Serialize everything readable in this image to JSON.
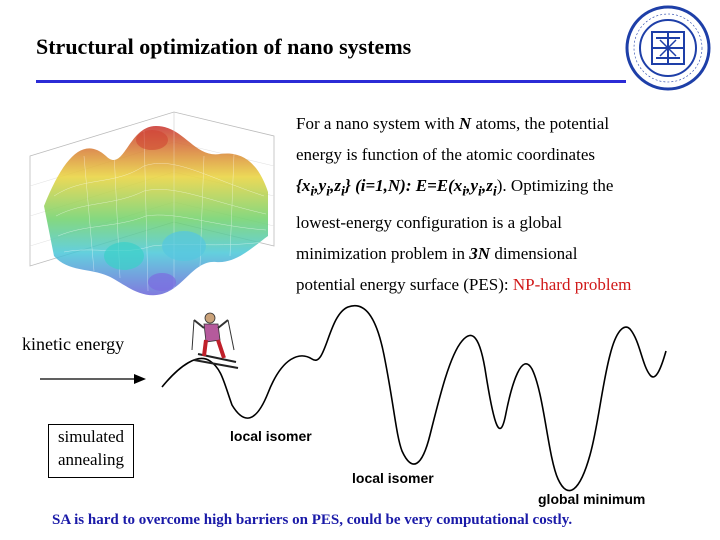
{
  "slide": {
    "title": "Structural optimization of nano systems",
    "paragraph": {
      "line1_a": "For a nano system with ",
      "line1_n": "N",
      "line1_b": " atoms, the potential",
      "line2": "energy is function of the atomic coordinates",
      "line3_a": "{x",
      "line3_sub1": "i",
      "line3_b": ",y",
      "line3_sub2": "i",
      "line3_c": ",z",
      "line3_sub3": "i",
      "line3_d": "} (i=1,N): E=E(x",
      "line3_sub4": "i",
      "line3_e": ",y",
      "line3_sub5": "i",
      "line3_f": ",z",
      "line3_sub6": "i",
      "line3_g": "). Optimizing the",
      "line4": "lowest-energy configuration is a global",
      "line5_a": "minimization problem in ",
      "line5_b": "3N",
      "line5_c": " dimensional",
      "line6_a": "potential energy surface (PES): ",
      "line6_red": "NP-hard  problem"
    },
    "kinetic_label": "kinetic energy",
    "sa_box": {
      "line1": "simulated",
      "line2": "annealing"
    },
    "labels": {
      "local1": "local isomer",
      "local2": "local isomer",
      "global": "global minimum"
    },
    "bottom_note": "SA is hard to overcome high barriers on PES, could be very computational costly.",
    "colors": {
      "rule": "#2b2bd6",
      "accent_red": "#d01818",
      "note_blue": "#1a1aa8"
    },
    "icons": [
      "university-logo-icon",
      "energy-surface-3d-image",
      "skier-icon",
      "arrow-right-icon"
    ]
  }
}
